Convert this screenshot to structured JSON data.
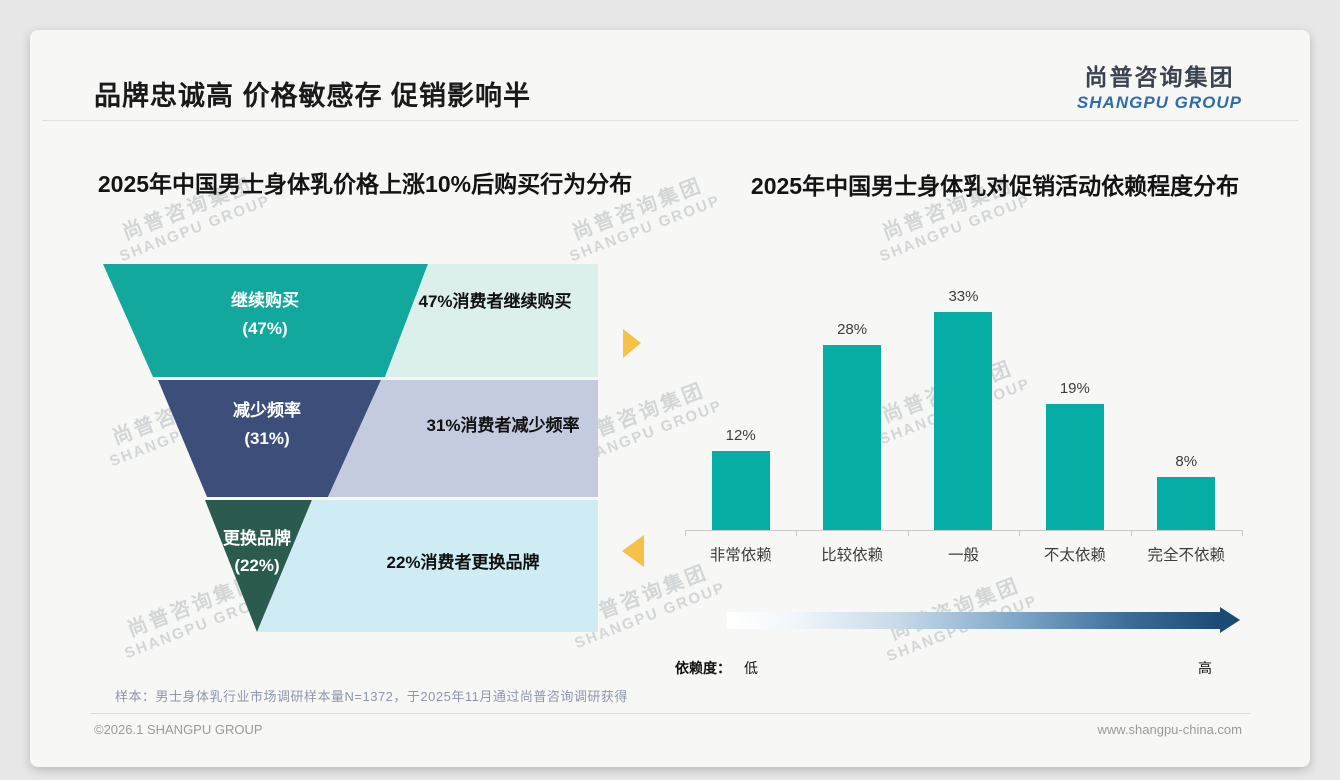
{
  "page": {
    "header": {
      "title": "品牌忠诚高 价格敏感存 促销影响半"
    },
    "logo": {
      "cn": "尚普咨询集团",
      "en": "SHANGPU GROUP"
    },
    "watermark": {
      "cn": "尚普咨询集团",
      "en": "SHANGPU GROUP"
    },
    "footer": {
      "sample_note": "样本：男士身体乳行业市场调研样本量N=1372，于2025年11月通过尚普咨询调研获得",
      "copyright": "©2026.1 SHANGPU GROUP",
      "website": "www.shangpu-china.com"
    }
  },
  "chart_data": [
    {
      "type": "funnel",
      "title": "2025年中国男士身体乳价格上涨10%后购买行为分布",
      "categories": [
        "继续购买",
        "减少频率",
        "更换品牌"
      ],
      "values": [
        47,
        31,
        22
      ],
      "pct_labels": [
        "(47%)",
        "(31%)",
        "(22%)"
      ],
      "annotations": [
        "47%消费者继续购买",
        "31%消费者减少频率",
        "22%消费者更换品牌"
      ],
      "segment_colors": [
        "#12a89e",
        "#3e4e7b",
        "#2b5b4f"
      ],
      "panel_colors": [
        "#dcf0eb",
        "#c4cbdf",
        "#cfecf4"
      ],
      "arrow_color": "#f5c147"
    },
    {
      "type": "bar",
      "title": "2025年中国男士身体乳对促销活动依赖程度分布",
      "categories": [
        "非常依赖",
        "比较依赖",
        "一般",
        "不太依赖",
        "完全不依赖"
      ],
      "values": [
        12,
        28,
        33,
        19,
        8
      ],
      "value_labels": [
        "12%",
        "28%",
        "33%",
        "19%",
        "8%"
      ],
      "bar_color": "#05ada4",
      "ylim": [
        0,
        35
      ],
      "grid": false,
      "axis_note": {
        "label": "依赖度：",
        "low": "低",
        "high": "高"
      }
    }
  ]
}
